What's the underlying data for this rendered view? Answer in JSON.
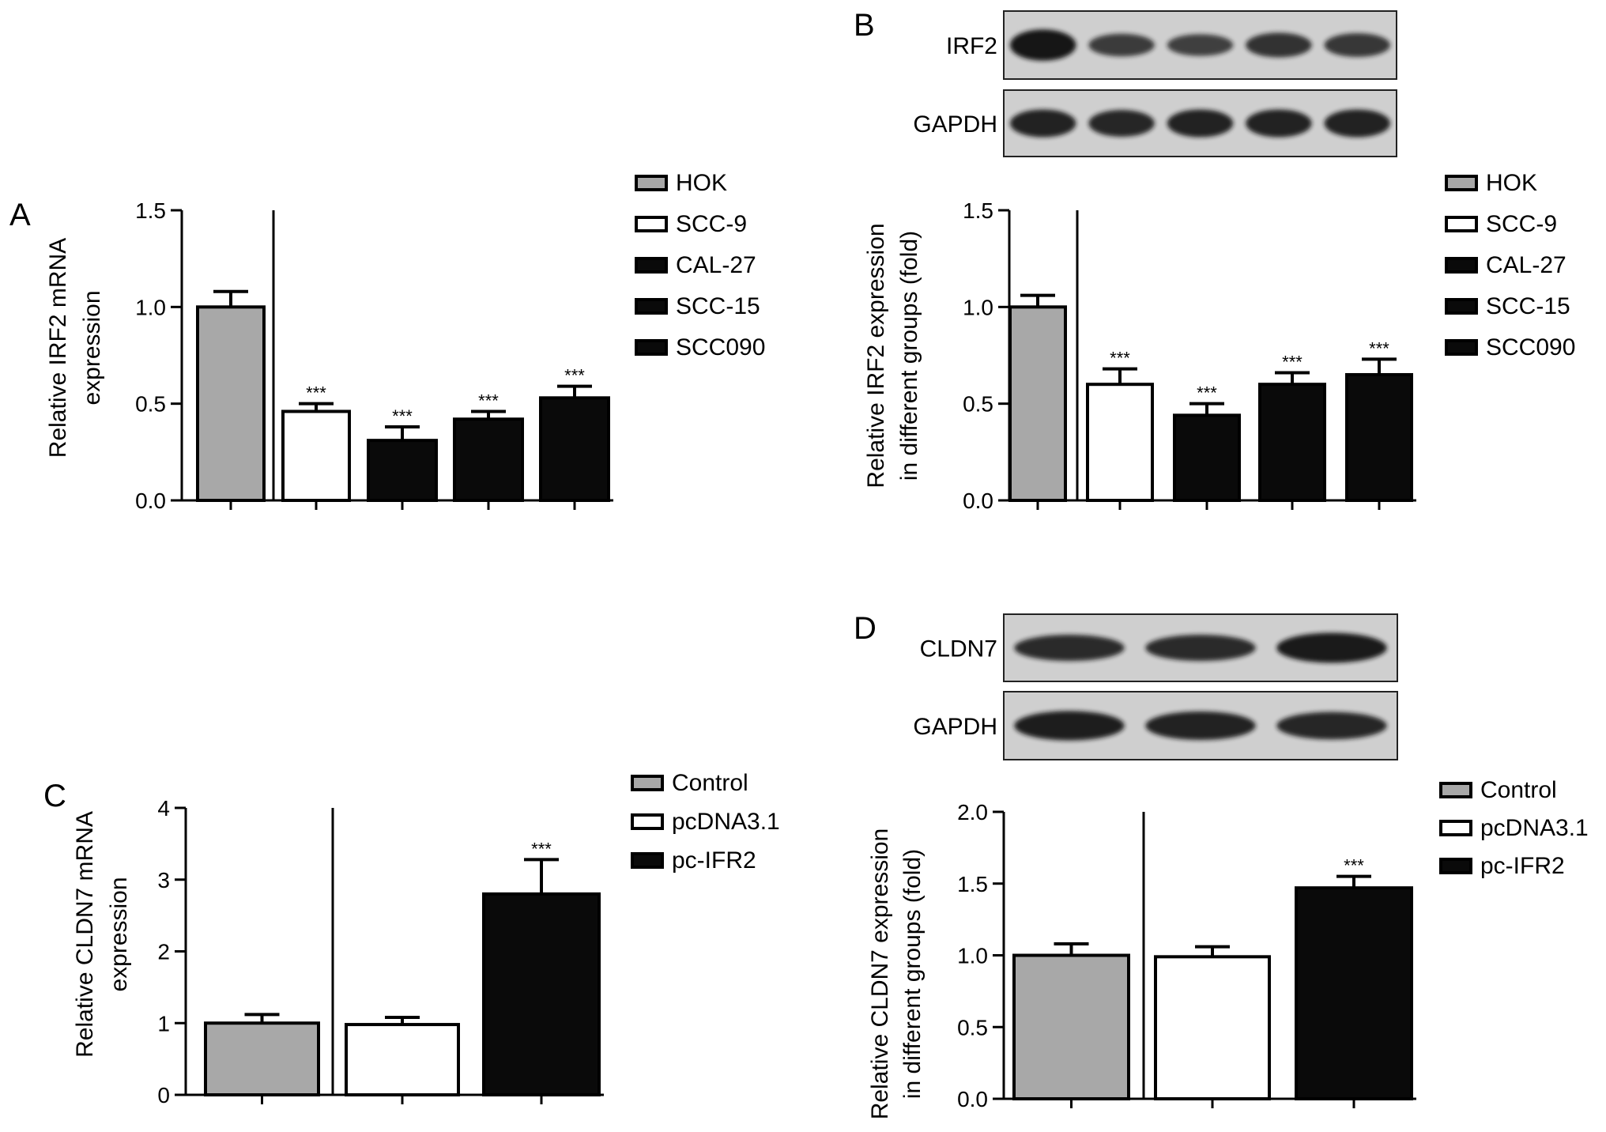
{
  "colors": {
    "gray": "#a8a8a8",
    "white": "#ffffff",
    "black": "#0a0a0a",
    "blot_bg": "#cfcfcf",
    "band": "#161616",
    "axis": "#000000"
  },
  "significance_marker": "***",
  "chart_data": [
    {
      "id": "A",
      "panel_label": "A",
      "type": "bar",
      "categories": [
        "HOK",
        "SCC-9",
        "CAL-27",
        "SCC-15",
        "SCC090"
      ],
      "values": [
        1.0,
        0.46,
        0.31,
        0.42,
        0.53
      ],
      "errors": [
        0.08,
        0.04,
        0.07,
        0.04,
        0.06
      ],
      "significant": [
        false,
        true,
        true,
        true,
        true
      ],
      "fill": [
        "gray",
        "white",
        "black",
        "black",
        "black"
      ],
      "ylabel_lines": [
        "Relative IRF2 mRNA",
        "expression"
      ],
      "ylim": [
        0,
        1.5
      ],
      "yticks": [
        0.0,
        0.5,
        1.0,
        1.5
      ],
      "ytick_labels": [
        "0.0",
        "0.5",
        "1.0",
        "1.5"
      ],
      "legend": [
        "HOK",
        "SCC-9",
        "CAL-27",
        "SCC-15",
        "SCC090"
      ],
      "legend_position": "right",
      "grid": false
    },
    {
      "id": "B",
      "panel_label": "B",
      "type": "bar",
      "categories": [
        "HOK",
        "SCC-9",
        "CAL-27",
        "SCC-15",
        "SCC090"
      ],
      "values": [
        1.0,
        0.6,
        0.44,
        0.6,
        0.65
      ],
      "errors": [
        0.06,
        0.08,
        0.06,
        0.06,
        0.08
      ],
      "significant": [
        false,
        true,
        true,
        true,
        true
      ],
      "fill": [
        "gray",
        "white",
        "black",
        "black",
        "black"
      ],
      "ylabel_lines": [
        "Relative IRF2 expression",
        "in different groups (fold)"
      ],
      "ylim": [
        0,
        1.5
      ],
      "yticks": [
        0.0,
        0.5,
        1.0,
        1.5
      ],
      "ytick_labels": [
        "0.0",
        "0.5",
        "1.0",
        "1.5"
      ],
      "legend": [
        "HOK",
        "SCC-9",
        "CAL-27",
        "SCC-15",
        "SCC090"
      ],
      "legend_position": "right",
      "grid": false,
      "blot_rows": [
        {
          "label": "IRF2",
          "intensity": [
            1.0,
            0.55,
            0.5,
            0.65,
            0.6
          ]
        },
        {
          "label": "GAPDH",
          "intensity": [
            0.85,
            0.8,
            0.85,
            0.85,
            0.85
          ]
        }
      ]
    },
    {
      "id": "C",
      "panel_label": "C",
      "type": "bar",
      "categories": [
        "Control",
        "pcDNA3.1",
        "pc-IFR2"
      ],
      "values": [
        1.0,
        0.98,
        2.8
      ],
      "errors": [
        0.12,
        0.1,
        0.48
      ],
      "significant": [
        false,
        false,
        true
      ],
      "fill": [
        "gray",
        "white",
        "black"
      ],
      "ylabel_lines": [
        "Relative CLDN7 mRNA",
        "expression"
      ],
      "ylim": [
        0,
        4
      ],
      "yticks": [
        0,
        1,
        2,
        3,
        4
      ],
      "ytick_labels": [
        "0",
        "1",
        "2",
        "3",
        "4"
      ],
      "legend": [
        "Control",
        "pcDNA3.1",
        "pc-IFR2"
      ],
      "legend_position": "right",
      "grid": false
    },
    {
      "id": "D",
      "panel_label": "D",
      "type": "bar",
      "categories": [
        "Control",
        "pcDNA3.1",
        "pc-IFR2"
      ],
      "values": [
        1.0,
        0.99,
        1.47
      ],
      "errors": [
        0.08,
        0.07,
        0.08
      ],
      "significant": [
        false,
        false,
        true
      ],
      "fill": [
        "gray",
        "white",
        "black"
      ],
      "ylabel_lines": [
        "Relative CLDN7 expression",
        "in different groups (fold)"
      ],
      "ylim": [
        0,
        2.0
      ],
      "yticks": [
        0.0,
        0.5,
        1.0,
        1.5,
        2.0
      ],
      "ytick_labels": [
        "0.0",
        "0.5",
        "1.0",
        "1.5",
        "2.0"
      ],
      "legend": [
        "Control",
        "pcDNA3.1",
        "pc-IFR2"
      ],
      "legend_position": "right",
      "grid": false,
      "blot_rows": [
        {
          "label": "CLDN7",
          "intensity": [
            0.75,
            0.75,
            0.95
          ]
        },
        {
          "label": "GAPDH",
          "intensity": [
            0.9,
            0.85,
            0.8
          ]
        }
      ]
    }
  ]
}
